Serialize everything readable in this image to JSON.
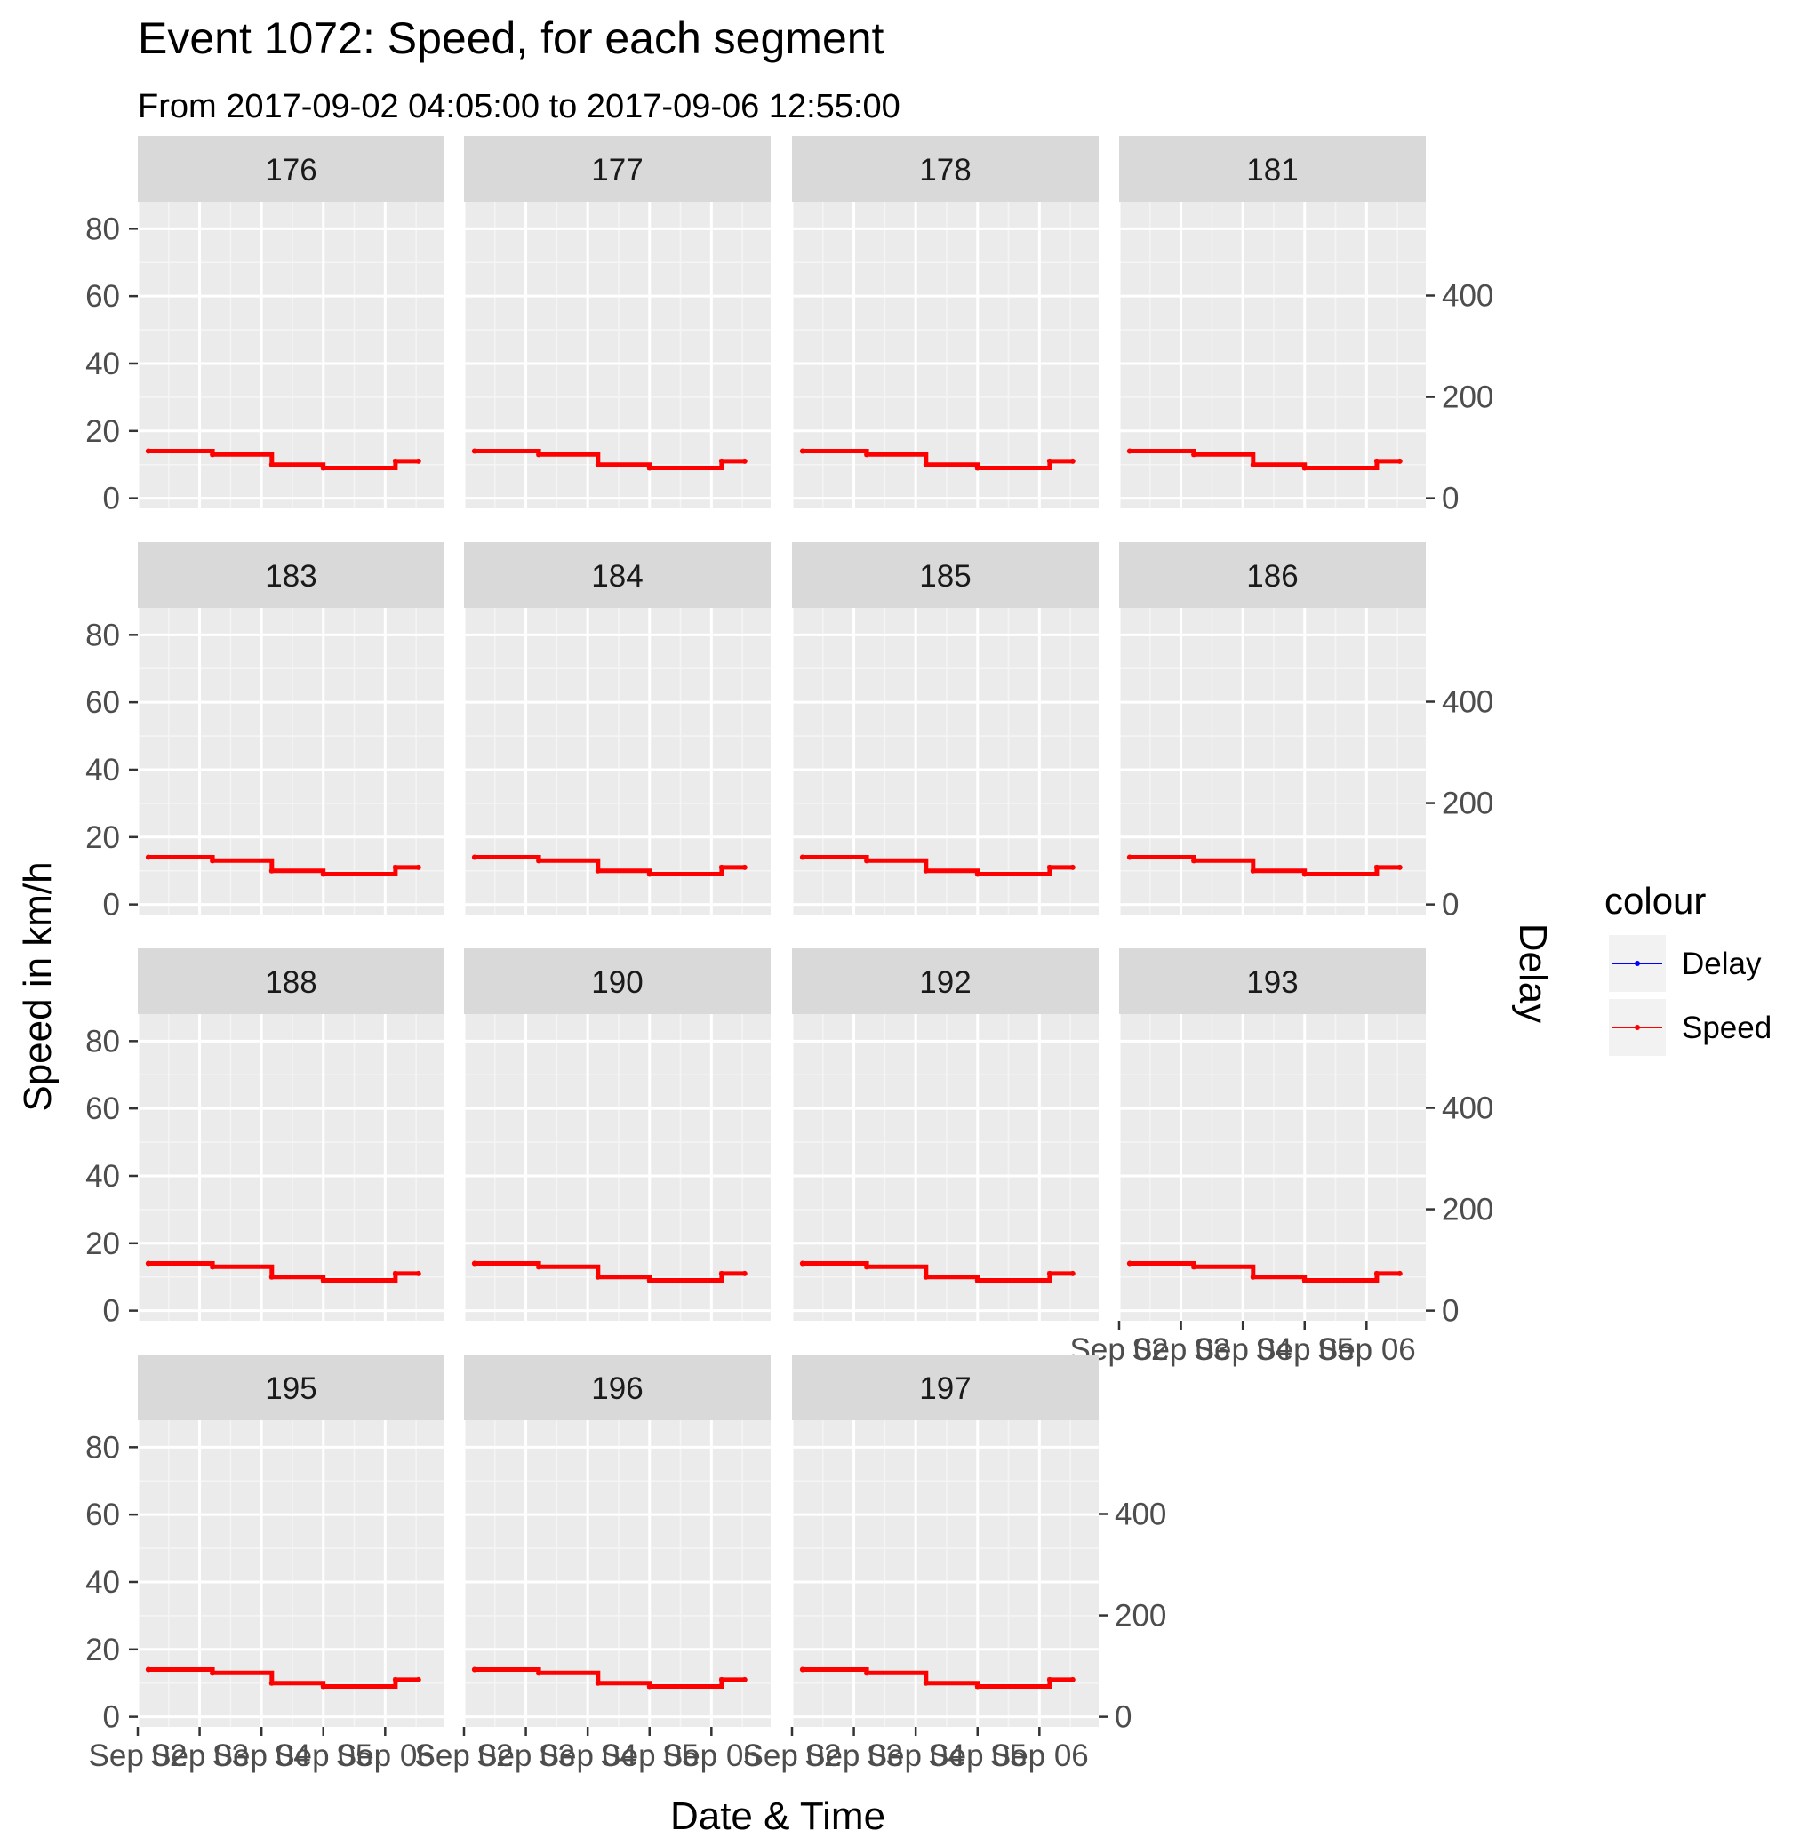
{
  "chart_data": {
    "type": "line",
    "title": "Event 1072: Speed, for each segment",
    "subtitle": "From 2017-09-02 04:05:00 to 2017-09-06 12:55:00",
    "xlabel": "Date & Time",
    "ylabel": "Speed in km/h",
    "ylabel_right": "Delay",
    "x_ticks": [
      "Sep 02",
      "Sep 03",
      "Sep 04",
      "Sep 05",
      "Sep 06"
    ],
    "x_range": [
      "2017-09-02 00:00",
      "2017-09-06 23:00"
    ],
    "y_ticks": [
      0,
      20,
      40,
      60,
      80
    ],
    "ylim": [
      -3,
      88
    ],
    "y_right_ticks": [
      0,
      200,
      400
    ],
    "legend": {
      "title": "colour",
      "position": "right",
      "entries": [
        {
          "name": "Delay",
          "color": "#0000ff"
        },
        {
          "name": "Speed",
          "color": "#ff0000"
        }
      ]
    },
    "grid": true,
    "facets": [
      "176",
      "177",
      "178",
      "181",
      "183",
      "184",
      "185",
      "186",
      "188",
      "190",
      "192",
      "193",
      "195",
      "196",
      "197"
    ],
    "series": [
      {
        "name": "Speed",
        "color": "#ff0000",
        "step": true,
        "points": [
          {
            "x": "2017-09-02 04:05",
            "y": 14
          },
          {
            "x": "2017-09-03 05:00",
            "y": 13
          },
          {
            "x": "2017-09-04 04:00",
            "y": 10
          },
          {
            "x": "2017-09-05 00:00",
            "y": 9
          },
          {
            "x": "2017-09-06 04:00",
            "y": 11
          },
          {
            "x": "2017-09-06 12:55",
            "y": 11
          }
        ]
      }
    ]
  }
}
